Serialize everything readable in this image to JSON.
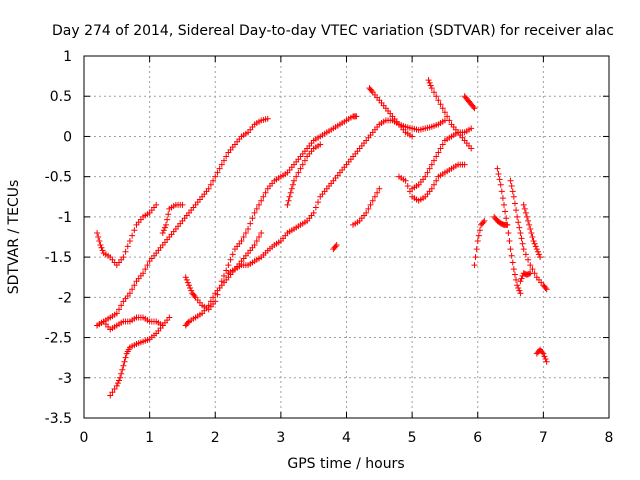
{
  "chart_data": {
    "type": "scatter",
    "title": "Day 274 of 2014, Sidereal Day-to-day VTEC variation (SDTVAR) for receiver alac",
    "xlabel": "GPS time / hours",
    "ylabel": "SDTVAR / TECUs",
    "xlim": [
      0,
      8
    ],
    "ylim": [
      -3.5,
      1
    ],
    "xticks": [
      "0",
      "1",
      "2",
      "3",
      "4",
      "5",
      "6",
      "7",
      "8"
    ],
    "yticks": [
      "1",
      "0.5",
      "0",
      "-0.5",
      "-1",
      "-1.5",
      "-2",
      "-2.5",
      "-3",
      "-3.5"
    ],
    "grid": true,
    "marker": "+",
    "color": "#ff0000",
    "series": [
      {
        "points": [
          [
            0.2,
            -1.2
          ],
          [
            0.25,
            -1.35
          ],
          [
            0.3,
            -1.45
          ],
          [
            0.4,
            -1.5
          ],
          [
            0.5,
            -1.6
          ],
          [
            0.6,
            -1.5
          ],
          [
            0.7,
            -1.3
          ],
          [
            0.8,
            -1.1
          ],
          [
            0.9,
            -1.0
          ],
          [
            1.0,
            -0.95
          ],
          [
            1.1,
            -0.85
          ]
        ]
      },
      {
        "points": [
          [
            1.2,
            -1.2
          ],
          [
            1.25,
            -1.1
          ],
          [
            1.3,
            -0.9
          ],
          [
            1.4,
            -0.85
          ],
          [
            1.5,
            -0.85
          ]
        ]
      },
      {
        "points": [
          [
            0.2,
            -2.35
          ],
          [
            0.3,
            -2.3
          ],
          [
            0.4,
            -2.25
          ],
          [
            0.5,
            -2.2
          ],
          [
            0.6,
            -2.05
          ],
          [
            0.7,
            -1.95
          ],
          [
            0.8,
            -1.8
          ],
          [
            0.9,
            -1.7
          ],
          [
            1.0,
            -1.55
          ],
          [
            1.1,
            -1.45
          ],
          [
            1.2,
            -1.35
          ],
          [
            1.3,
            -1.25
          ],
          [
            1.4,
            -1.15
          ],
          [
            1.5,
            -1.05
          ],
          [
            1.6,
            -0.95
          ],
          [
            1.7,
            -0.85
          ],
          [
            1.8,
            -0.75
          ],
          [
            1.9,
            -0.65
          ],
          [
            2.0,
            -0.5
          ],
          [
            2.1,
            -0.35
          ],
          [
            2.2,
            -0.2
          ],
          [
            2.3,
            -0.1
          ],
          [
            2.4,
            0.0
          ],
          [
            2.5,
            0.05
          ],
          [
            2.6,
            0.15
          ],
          [
            2.7,
            0.2
          ],
          [
            2.8,
            0.22
          ]
        ]
      },
      {
        "points": [
          [
            0.2,
            -2.35
          ],
          [
            0.3,
            -2.3
          ],
          [
            0.4,
            -2.4
          ],
          [
            0.5,
            -2.35
          ],
          [
            0.6,
            -2.3
          ],
          [
            0.7,
            -2.3
          ],
          [
            0.8,
            -2.25
          ],
          [
            0.9,
            -2.25
          ],
          [
            1.0,
            -2.3
          ],
          [
            1.1,
            -2.3
          ],
          [
            1.2,
            -2.35
          ]
        ]
      },
      {
        "points": [
          [
            0.4,
            -3.22
          ],
          [
            0.5,
            -3.1
          ],
          [
            0.55,
            -3.0
          ],
          [
            0.6,
            -2.85
          ],
          [
            0.65,
            -2.7
          ],
          [
            0.7,
            -2.62
          ],
          [
            0.8,
            -2.58
          ],
          [
            0.9,
            -2.55
          ],
          [
            1.0,
            -2.52
          ],
          [
            1.1,
            -2.45
          ],
          [
            1.2,
            -2.35
          ],
          [
            1.3,
            -2.25
          ]
        ]
      },
      {
        "points": [
          [
            1.55,
            -1.75
          ],
          [
            1.6,
            -1.85
          ],
          [
            1.65,
            -1.95
          ],
          [
            1.7,
            -2.0
          ],
          [
            1.8,
            -2.1
          ],
          [
            1.9,
            -2.15
          ],
          [
            2.0,
            -2.05
          ],
          [
            2.1,
            -1.8
          ],
          [
            2.2,
            -1.6
          ],
          [
            2.3,
            -1.4
          ],
          [
            2.4,
            -1.3
          ],
          [
            2.5,
            -1.15
          ],
          [
            2.6,
            -0.95
          ],
          [
            2.7,
            -0.8
          ],
          [
            2.8,
            -0.65
          ],
          [
            2.9,
            -0.55
          ],
          [
            3.0,
            -0.5
          ],
          [
            3.1,
            -0.45
          ],
          [
            3.2,
            -0.35
          ],
          [
            3.3,
            -0.25
          ],
          [
            3.4,
            -0.15
          ],
          [
            3.5,
            -0.05
          ],
          [
            3.6,
            0.0
          ],
          [
            3.7,
            0.05
          ],
          [
            3.8,
            0.1
          ],
          [
            3.9,
            0.15
          ],
          [
            4.0,
            0.2
          ],
          [
            4.1,
            0.25
          ],
          [
            4.15,
            0.25
          ]
        ]
      },
      {
        "points": [
          [
            1.55,
            -2.35
          ],
          [
            1.6,
            -2.3
          ],
          [
            1.7,
            -2.25
          ],
          [
            1.8,
            -2.2
          ],
          [
            1.9,
            -2.1
          ],
          [
            2.0,
            -1.95
          ],
          [
            2.1,
            -1.85
          ],
          [
            2.2,
            -1.75
          ],
          [
            2.3,
            -1.65
          ],
          [
            2.4,
            -1.55
          ],
          [
            2.5,
            -1.45
          ],
          [
            2.6,
            -1.35
          ],
          [
            2.7,
            -1.2
          ]
        ]
      },
      {
        "points": [
          [
            2.2,
            -1.7
          ],
          [
            2.3,
            -1.65
          ],
          [
            2.4,
            -1.6
          ],
          [
            2.5,
            -1.6
          ],
          [
            2.6,
            -1.55
          ],
          [
            2.7,
            -1.5
          ],
          [
            2.8,
            -1.42
          ],
          [
            2.9,
            -1.35
          ],
          [
            3.0,
            -1.3
          ],
          [
            3.1,
            -1.2
          ],
          [
            3.2,
            -1.15
          ],
          [
            3.3,
            -1.1
          ],
          [
            3.4,
            -1.05
          ],
          [
            3.5,
            -0.95
          ],
          [
            3.6,
            -0.75
          ],
          [
            3.7,
            -0.65
          ],
          [
            3.8,
            -0.55
          ],
          [
            3.9,
            -0.45
          ],
          [
            4.0,
            -0.35
          ],
          [
            4.1,
            -0.25
          ],
          [
            4.2,
            -0.15
          ],
          [
            4.3,
            -0.05
          ],
          [
            4.4,
            0.05
          ],
          [
            4.5,
            0.15
          ],
          [
            4.6,
            0.2
          ],
          [
            4.7,
            0.2
          ],
          [
            4.8,
            0.15
          ],
          [
            4.9,
            0.12
          ],
          [
            5.0,
            0.1
          ],
          [
            5.1,
            0.08
          ],
          [
            5.2,
            0.1
          ],
          [
            5.3,
            0.12
          ],
          [
            5.4,
            0.15
          ],
          [
            5.5,
            0.2
          ]
        ]
      },
      {
        "points": [
          [
            3.1,
            -0.85
          ],
          [
            3.15,
            -0.7
          ],
          [
            3.2,
            -0.55
          ],
          [
            3.3,
            -0.4
          ],
          [
            3.4,
            -0.25
          ],
          [
            3.5,
            -0.15
          ],
          [
            3.6,
            -0.1
          ]
        ]
      },
      {
        "points": [
          [
            3.8,
            -1.4
          ],
          [
            3.85,
            -1.35
          ]
        ]
      },
      {
        "points": [
          [
            4.1,
            -1.1
          ],
          [
            4.2,
            -1.05
          ],
          [
            4.3,
            -0.95
          ],
          [
            4.4,
            -0.8
          ],
          [
            4.5,
            -0.65
          ]
        ]
      },
      {
        "points": [
          [
            4.35,
            0.6
          ],
          [
            4.4,
            0.55
          ],
          [
            4.5,
            0.45
          ],
          [
            4.6,
            0.35
          ],
          [
            4.7,
            0.25
          ],
          [
            4.8,
            0.15
          ],
          [
            4.9,
            0.05
          ],
          [
            5.0,
            0.0
          ]
        ]
      },
      {
        "points": [
          [
            4.8,
            -0.5
          ],
          [
            4.9,
            -0.55
          ],
          [
            5.0,
            -0.75
          ],
          [
            5.1,
            -0.8
          ],
          [
            5.2,
            -0.75
          ],
          [
            5.3,
            -0.65
          ],
          [
            5.4,
            -0.5
          ],
          [
            5.5,
            -0.45
          ],
          [
            5.6,
            -0.4
          ],
          [
            5.7,
            -0.35
          ],
          [
            5.8,
            -0.35
          ]
        ]
      },
      {
        "points": [
          [
            5.0,
            -0.65
          ],
          [
            5.1,
            -0.6
          ],
          [
            5.2,
            -0.5
          ],
          [
            5.3,
            -0.35
          ],
          [
            5.4,
            -0.2
          ],
          [
            5.5,
            -0.05
          ],
          [
            5.6,
            -0.0
          ],
          [
            5.7,
            0.05
          ],
          [
            5.8,
            0.05
          ],
          [
            5.9,
            0.1
          ]
        ]
      },
      {
        "points": [
          [
            5.25,
            0.7
          ],
          [
            5.3,
            0.6
          ],
          [
            5.4,
            0.45
          ],
          [
            5.5,
            0.3
          ],
          [
            5.6,
            0.15
          ],
          [
            5.7,
            0.05
          ],
          [
            5.8,
            -0.05
          ],
          [
            5.9,
            -0.15
          ]
        ]
      },
      {
        "points": [
          [
            5.8,
            0.5
          ],
          [
            5.85,
            0.45
          ],
          [
            5.9,
            0.4
          ],
          [
            5.95,
            0.35
          ]
        ]
      },
      {
        "points": [
          [
            5.95,
            -1.6
          ],
          [
            6.0,
            -1.3
          ],
          [
            6.05,
            -1.1
          ],
          [
            6.1,
            -1.05
          ]
        ]
      },
      {
        "points": [
          [
            6.3,
            -0.4
          ],
          [
            6.35,
            -0.6
          ],
          [
            6.4,
            -0.85
          ],
          [
            6.45,
            -1.1
          ],
          [
            6.5,
            -1.4
          ],
          [
            6.55,
            -1.65
          ],
          [
            6.6,
            -1.85
          ],
          [
            6.65,
            -1.95
          ]
        ]
      },
      {
        "points": [
          [
            6.25,
            -1.0
          ],
          [
            6.3,
            -1.05
          ],
          [
            6.35,
            -1.08
          ],
          [
            6.4,
            -1.1
          ],
          [
            6.45,
            -1.1
          ]
        ]
      },
      {
        "points": [
          [
            6.5,
            -0.55
          ],
          [
            6.55,
            -0.75
          ],
          [
            6.6,
            -1.0
          ],
          [
            6.65,
            -1.2
          ],
          [
            6.7,
            -1.4
          ],
          [
            6.8,
            -1.6
          ],
          [
            6.9,
            -1.75
          ],
          [
            7.0,
            -1.85
          ],
          [
            7.05,
            -1.9
          ]
        ]
      },
      {
        "points": [
          [
            6.65,
            -1.8
          ],
          [
            6.7,
            -1.7
          ],
          [
            6.75,
            -1.72
          ],
          [
            6.8,
            -1.7
          ]
        ]
      },
      {
        "points": [
          [
            6.7,
            -0.85
          ],
          [
            6.75,
            -1.0
          ],
          [
            6.8,
            -1.15
          ],
          [
            6.85,
            -1.3
          ],
          [
            6.9,
            -1.4
          ],
          [
            6.95,
            -1.5
          ]
        ]
      },
      {
        "points": [
          [
            6.9,
            -2.7
          ],
          [
            6.95,
            -2.65
          ],
          [
            7.0,
            -2.7
          ],
          [
            7.05,
            -2.8
          ]
        ]
      }
    ]
  }
}
